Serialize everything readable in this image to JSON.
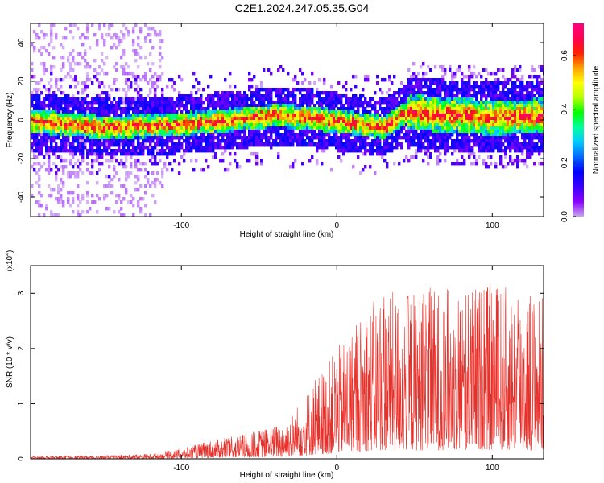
{
  "title": "C2E1.2024.247.05.35.G04",
  "chart_data": [
    {
      "type": "heatmap",
      "xlabel": "Height of straight line (km)",
      "ylabel": "Frequency (Hz)",
      "xlim": [
        -197,
        133
      ],
      "ylim": [
        -50,
        50
      ],
      "x_ticks": [
        -100,
        0,
        100
      ],
      "y_ticks": [
        -40,
        -20,
        0,
        20,
        40
      ],
      "colorbar": {
        "label": "Normalized spectral amplitude",
        "range": [
          0.0,
          0.72
        ],
        "ticks": [
          "0.0",
          "0.2",
          "0.4",
          "0.6"
        ],
        "colors": [
          "#c7a6ec",
          "#8a00ff",
          "#3a00ff",
          "#0000ff",
          "#0066ff",
          "#00c8ff",
          "#00ffa0",
          "#00ff00",
          "#b4ff00",
          "#ffff00",
          "#ffa000",
          "#ff2000",
          "#ff0050",
          "#ff0080"
        ]
      },
      "band_center": [
        {
          "x": -197,
          "y": 0
        },
        {
          "x": -150,
          "y": -3
        },
        {
          "x": -110,
          "y": -2
        },
        {
          "x": -80,
          "y": 0
        },
        {
          "x": -40,
          "y": 3
        },
        {
          "x": -20,
          "y": 2
        },
        {
          "x": 0,
          "y": 0
        },
        {
          "x": 30,
          "y": -3
        },
        {
          "x": 45,
          "y": 5
        },
        {
          "x": 60,
          "y": 4
        },
        {
          "x": 100,
          "y": 2
        },
        {
          "x": 133,
          "y": 3
        }
      ]
    },
    {
      "type": "line",
      "xlabel": "Height of straight line (km)",
      "ylabel": "SNR (10 * v/v)",
      "scale_note": "(x10",
      "scale_exp": "4",
      "xlim": [
        -197,
        133
      ],
      "ylim": [
        0,
        3.5
      ],
      "x_ticks": [
        -100,
        0,
        100
      ],
      "y_ticks": [
        0,
        1,
        2,
        3
      ],
      "color": "#e8302a",
      "envelope": [
        {
          "x": -197,
          "y": 0.05
        },
        {
          "x": -150,
          "y": 0.06
        },
        {
          "x": -120,
          "y": 0.09
        },
        {
          "x": -100,
          "y": 0.18
        },
        {
          "x": -80,
          "y": 0.35
        },
        {
          "x": -60,
          "y": 0.45
        },
        {
          "x": -40,
          "y": 0.6
        },
        {
          "x": -30,
          "y": 0.8
        },
        {
          "x": -20,
          "y": 1.2
        },
        {
          "x": -10,
          "y": 1.6
        },
        {
          "x": 0,
          "y": 2.0
        },
        {
          "x": 10,
          "y": 2.4
        },
        {
          "x": 20,
          "y": 2.8
        },
        {
          "x": 30,
          "y": 3.0
        },
        {
          "x": 60,
          "y": 3.1
        },
        {
          "x": 100,
          "y": 3.2
        },
        {
          "x": 133,
          "y": 3.0
        }
      ]
    }
  ]
}
